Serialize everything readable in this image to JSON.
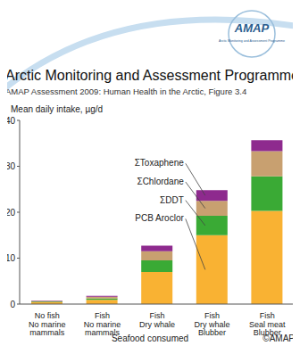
{
  "chart_data": {
    "type": "bar",
    "stacked": true,
    "logo_text": "AMAP",
    "logo_subtext": "Arctic Monitoring and Assessment Programme",
    "title": "Arctic Monitoring and Assessment Programme",
    "subtitle": "AMAP Assessment 2009: Human Health in the Arctic, Figure 3.4",
    "y_label": "Mean daily intake, µg/d",
    "x_label": "Seafood consumed",
    "copyright": "©AMAP",
    "categories": [
      "No fish\nNo marine\nmammals",
      "Fish\nNo marine\nmammals",
      "Fish\nDry whale",
      "Fish\nDry whale\nBlubber",
      "Fish\nSeal meat\nBlubber"
    ],
    "series": [
      {
        "name": "PCB Aroclor",
        "color": "#f9b233",
        "values": [
          0.4,
          0.9,
          7,
          15,
          20.3
        ]
      },
      {
        "name": "ΣDDT",
        "color": "#3aaa35",
        "values": [
          0.15,
          0.3,
          2.5,
          4.2,
          7.5
        ]
      },
      {
        "name": "ΣChlordane",
        "color": "#c8a070",
        "values": [
          0.15,
          0.4,
          2,
          3.3,
          5.5
        ]
      },
      {
        "name": "ΣToxaphene",
        "color": "#8e2a8e",
        "values": [
          0.1,
          0.2,
          1.2,
          2.3,
          2.4
        ]
      }
    ],
    "ylim": [
      0,
      40
    ],
    "yticks": [
      0,
      10,
      20,
      30,
      40
    ],
    "grid": false
  }
}
